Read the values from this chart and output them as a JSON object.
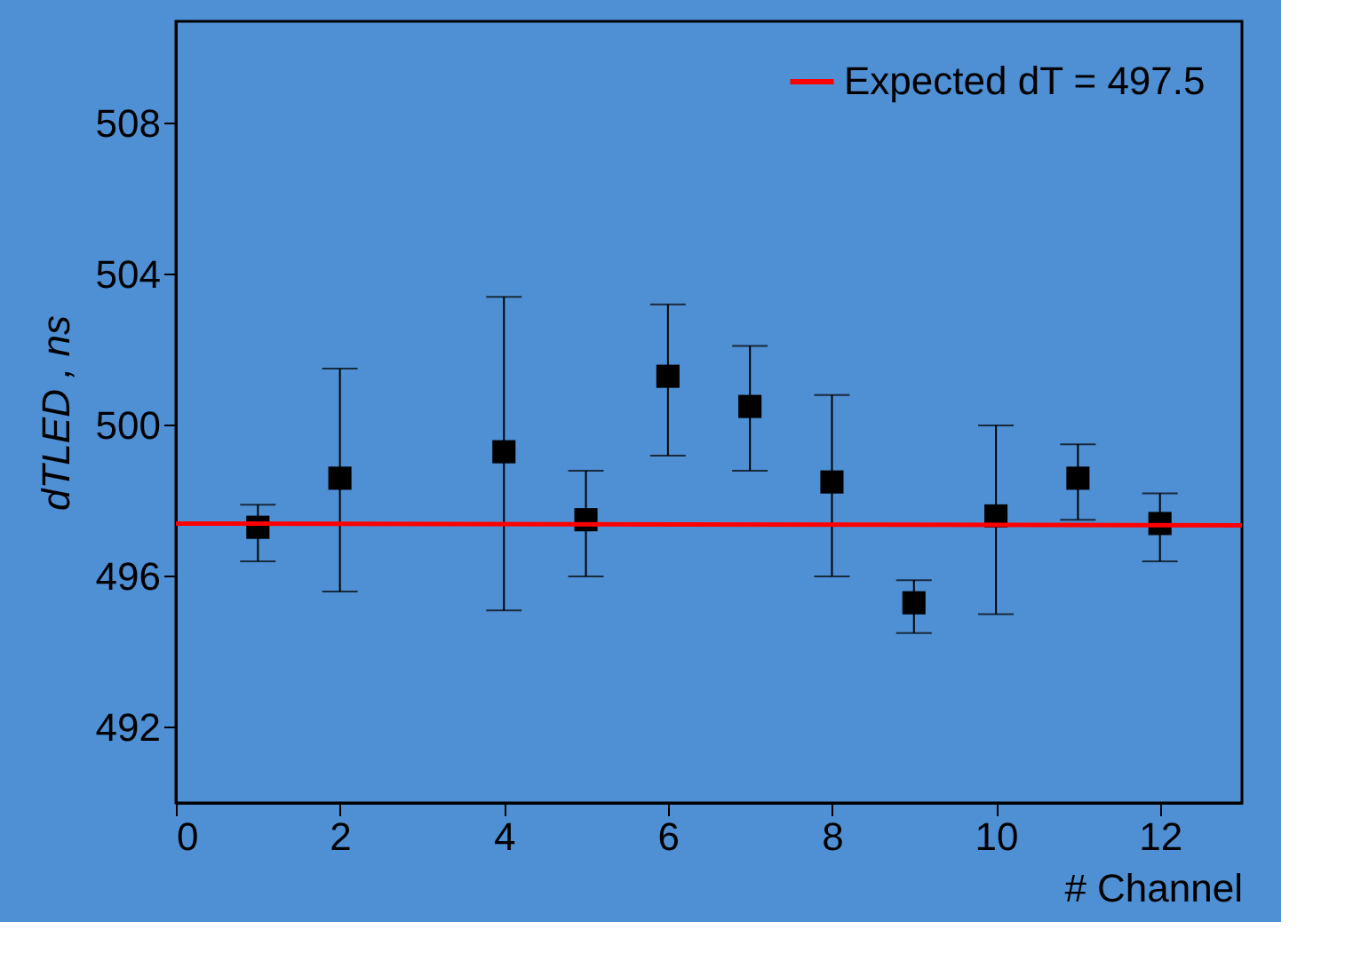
{
  "chart_data": {
    "type": "scatter",
    "xlabel": "# Channel",
    "ylabel": "dTLED , ns",
    "xlim": [
      0,
      13
    ],
    "xticks": [
      0,
      2,
      4,
      6,
      8,
      10,
      12
    ],
    "ylim": [
      490,
      510.7
    ],
    "yticks": [
      492,
      496,
      500,
      504,
      508
    ],
    "grid": false,
    "legend": "top right",
    "series": [
      {
        "marker": "square",
        "color": "#000000",
        "x": [
          1,
          2,
          4,
          5,
          6,
          7,
          8,
          9,
          10,
          11,
          12
        ],
        "values": [
          497.3,
          498.6,
          499.3,
          497.5,
          501.3,
          500.5,
          498.5,
          495.3,
          497.6,
          498.6,
          497.4
        ],
        "errors": [
          [
            496.4,
            497.9
          ],
          [
            495.6,
            501.5
          ],
          [
            495.1,
            503.4
          ],
          [
            496.0,
            498.8
          ],
          [
            499.2,
            503.2
          ],
          [
            498.8,
            502.1
          ],
          [
            496.0,
            500.8
          ],
          [
            494.5,
            495.9
          ],
          [
            495.0,
            500.0
          ],
          [
            497.5,
            499.5
          ],
          [
            496.4,
            498.2
          ]
        ]
      },
      {
        "type": "line",
        "name": "Expected dT = 497.5",
        "color": "#ff0000",
        "x": [
          0,
          13
        ],
        "values": [
          497.4,
          497.35
        ],
        "line_style": "solid"
      }
    ]
  }
}
